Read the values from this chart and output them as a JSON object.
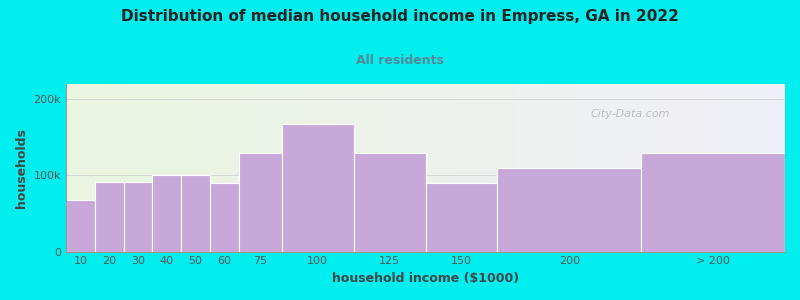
{
  "title": "Distribution of median household income in Empress, GA in 2022",
  "subtitle": "All residents",
  "xlabel": "household income ($1000)",
  "ylabel": "households",
  "background_color": "#00EEEE",
  "plot_bg_left": "#eaf5e0",
  "plot_bg_right": "#f0eff8",
  "bar_color": "#c8a8d8",
  "bar_edge_color": "#ffffff",
  "categories": [
    "10",
    "20",
    "30",
    "40",
    "50",
    "60",
    "75",
    "100",
    "125",
    "150",
    "200",
    "> 200"
  ],
  "bar_lefts": [
    0,
    10,
    20,
    30,
    40,
    50,
    60,
    75,
    100,
    125,
    150,
    200
  ],
  "bar_widths": [
    10,
    10,
    10,
    10,
    10,
    10,
    15,
    25,
    25,
    25,
    50,
    50
  ],
  "values": [
    68000,
    92000,
    92000,
    100000,
    100000,
    90000,
    130000,
    168000,
    130000,
    90000,
    110000,
    130000
  ],
  "ylim": [
    0,
    220000
  ],
  "yticks": [
    0,
    100000,
    200000
  ],
  "ytick_labels": [
    "0",
    "100k",
    "200k"
  ],
  "title_fontsize": 11,
  "subtitle_fontsize": 9,
  "label_fontsize": 9,
  "tick_fontsize": 8,
  "watermark_text": "City-Data.com"
}
